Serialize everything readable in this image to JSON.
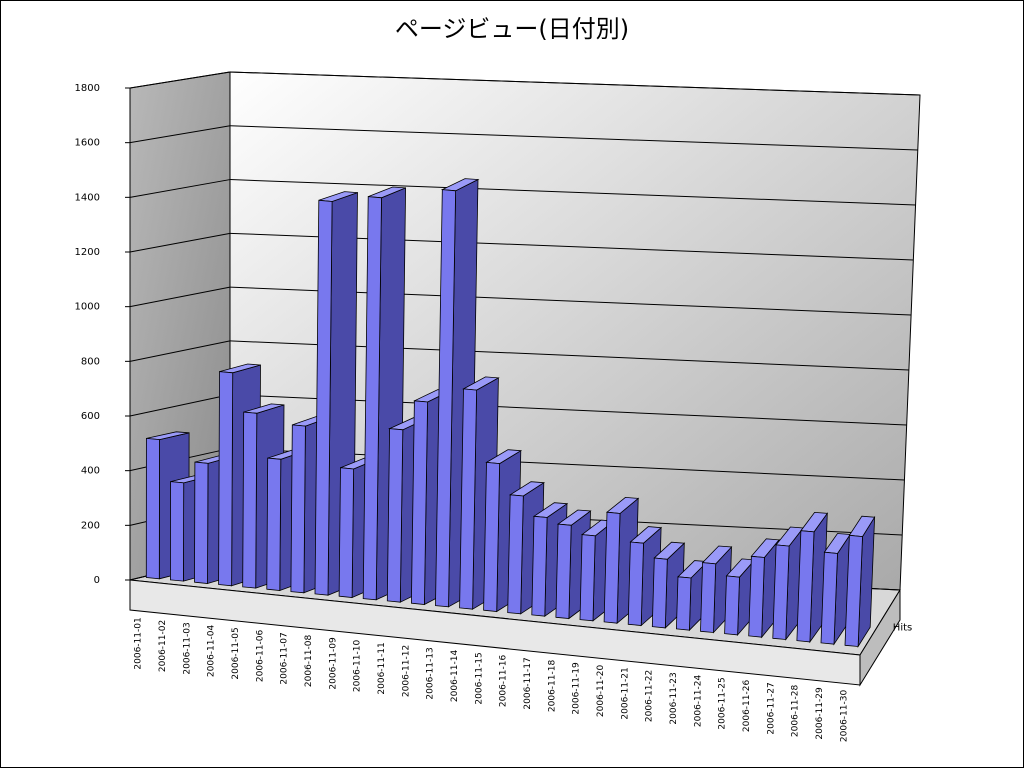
{
  "chart_data": {
    "type": "bar",
    "title": "ページビュー(日付別)",
    "categories": [
      "2006-11-01",
      "2006-11-02",
      "2006-11-03",
      "2006-11-04",
      "2006-11-05",
      "2006-11-06",
      "2006-11-07",
      "2006-11-08",
      "2006-11-09",
      "2006-11-10",
      "2006-11-11",
      "2006-11-12",
      "2006-11-13",
      "2006-11-14",
      "2006-11-15",
      "2006-11-16",
      "2006-11-17",
      "2006-11-18",
      "2006-11-19",
      "2006-11-20",
      "2006-11-21",
      "2006-11-22",
      "2006-11-23",
      "2006-11-24",
      "2006-11-25",
      "2006-11-26",
      "2006-11-27",
      "2006-11-28",
      "2006-11-29",
      "2006-11-30"
    ],
    "series": [
      {
        "name": "Hits",
        "color": "#7878ee",
        "values": [
          510,
          360,
          440,
          780,
          640,
          480,
          610,
          1440,
          470,
          1470,
          630,
          740,
          1520,
          800,
          540,
          430,
          360,
          340,
          310,
          400,
          300,
          250,
          190,
          250,
          210,
          290,
          340,
          400,
          330,
          400
        ]
      }
    ],
    "ylim": [
      0,
      1800
    ],
    "yticks": [
      0,
      200,
      400,
      600,
      800,
      1000,
      1200,
      1400,
      1600,
      1800
    ],
    "grid": true
  }
}
